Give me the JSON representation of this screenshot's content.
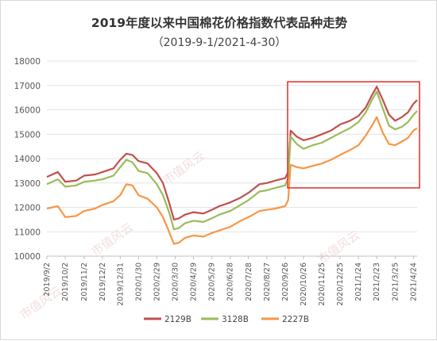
{
  "chart_data": {
    "type": "line",
    "title": "2019年度以来中国棉花价格指数代表品种走势",
    "subtitle": "（2019-9-1/2021-4-30）",
    "ylim": [
      10000,
      18000
    ],
    "yticks": [
      10000,
      11000,
      12000,
      13000,
      14000,
      15000,
      16000,
      17000,
      18000
    ],
    "x_tick_labels": [
      "2019/9/2",
      "2019/10/2",
      "2019/11/2",
      "2019/12/2",
      "2019/12/31",
      "2020/1/30",
      "2020/2/29",
      "2020/3/30",
      "2020/4/29",
      "2020/5/29",
      "2020/6/28",
      "2020/7/28",
      "2020/8/27",
      "2020/9/26",
      "2020/10/26",
      "2020/11/25",
      "2020/12/25",
      "2021/1/24",
      "2021/2/23",
      "2021/3/25",
      "2021/4/24"
    ],
    "x_range": [
      "2019/9/2",
      "2021/4/30"
    ],
    "grid": "horizontal",
    "legend_position": "bottom",
    "series": [
      {
        "name": "2129B",
        "color": "#c0504d",
        "points": [
          [
            "2019/9/2",
            13250
          ],
          [
            "2019/9/20",
            13450
          ],
          [
            "2019/10/2",
            13050
          ],
          [
            "2019/10/20",
            13100
          ],
          [
            "2019/11/2",
            13300
          ],
          [
            "2019/11/20",
            13350
          ],
          [
            "2019/12/2",
            13450
          ],
          [
            "2019/12/20",
            13600
          ],
          [
            "2019/12/31",
            13950
          ],
          [
            "2020/1/10",
            14200
          ],
          [
            "2020/1/20",
            14150
          ],
          [
            "2020/1/30",
            13900
          ],
          [
            "2020/2/14",
            13800
          ],
          [
            "2020/2/29",
            13400
          ],
          [
            "2020/3/10",
            13000
          ],
          [
            "2020/3/20",
            12200
          ],
          [
            "2020/3/28",
            11500
          ],
          [
            "2020/4/5",
            11550
          ],
          [
            "2020/4/15",
            11700
          ],
          [
            "2020/4/29",
            11800
          ],
          [
            "2020/5/15",
            11750
          ],
          [
            "2020/5/29",
            11900
          ],
          [
            "2020/6/10",
            12050
          ],
          [
            "2020/6/28",
            12200
          ],
          [
            "2020/7/15",
            12400
          ],
          [
            "2020/7/28",
            12600
          ],
          [
            "2020/8/15",
            12950
          ],
          [
            "2020/8/27",
            13000
          ],
          [
            "2020/9/10",
            13100
          ],
          [
            "2020/9/26",
            13200
          ],
          [
            "2020/10/1",
            13450
          ],
          [
            "2020/10/5",
            15150
          ],
          [
            "2020/10/15",
            14900
          ],
          [
            "2020/10/26",
            14750
          ],
          [
            "2020/11/10",
            14850
          ],
          [
            "2020/11/25",
            15000
          ],
          [
            "2020/12/10",
            15150
          ],
          [
            "2020/12/25",
            15400
          ],
          [
            "2021/1/10",
            15550
          ],
          [
            "2021/1/24",
            15750
          ],
          [
            "2021/2/5",
            16100
          ],
          [
            "2021/2/15",
            16600
          ],
          [
            "2021/2/23",
            16950
          ],
          [
            "2021/3/5",
            16400
          ],
          [
            "2021/3/15",
            15800
          ],
          [
            "2021/3/25",
            15550
          ],
          [
            "2021/4/5",
            15700
          ],
          [
            "2021/4/15",
            15900
          ],
          [
            "2021/4/24",
            16250
          ],
          [
            "2021/4/30",
            16400
          ]
        ]
      },
      {
        "name": "3128B",
        "color": "#9bbb59",
        "points": [
          [
            "2019/9/2",
            12950
          ],
          [
            "2019/9/20",
            13150
          ],
          [
            "2019/10/2",
            12850
          ],
          [
            "2019/10/20",
            12900
          ],
          [
            "2019/11/2",
            13050
          ],
          [
            "2019/11/20",
            13100
          ],
          [
            "2019/12/2",
            13150
          ],
          [
            "2019/12/20",
            13300
          ],
          [
            "2019/12/31",
            13650
          ],
          [
            "2020/1/10",
            13950
          ],
          [
            "2020/1/20",
            13850
          ],
          [
            "2020/1/30",
            13500
          ],
          [
            "2020/2/14",
            13400
          ],
          [
            "2020/2/29",
            12950
          ],
          [
            "2020/3/10",
            12500
          ],
          [
            "2020/3/20",
            11800
          ],
          [
            "2020/3/28",
            11100
          ],
          [
            "2020/4/5",
            11150
          ],
          [
            "2020/4/15",
            11350
          ],
          [
            "2020/4/29",
            11450
          ],
          [
            "2020/5/15",
            11400
          ],
          [
            "2020/5/29",
            11550
          ],
          [
            "2020/6/10",
            11700
          ],
          [
            "2020/6/28",
            11850
          ],
          [
            "2020/7/15",
            12100
          ],
          [
            "2020/7/28",
            12300
          ],
          [
            "2020/8/15",
            12650
          ],
          [
            "2020/8/27",
            12700
          ],
          [
            "2020/9/10",
            12800
          ],
          [
            "2020/9/26",
            12900
          ],
          [
            "2020/10/1",
            13200
          ],
          [
            "2020/10/5",
            14900
          ],
          [
            "2020/10/15",
            14600
          ],
          [
            "2020/10/26",
            14400
          ],
          [
            "2020/11/10",
            14550
          ],
          [
            "2020/11/25",
            14650
          ],
          [
            "2020/12/10",
            14850
          ],
          [
            "2020/12/25",
            15050
          ],
          [
            "2021/1/10",
            15250
          ],
          [
            "2021/1/24",
            15500
          ],
          [
            "2021/2/5",
            15900
          ],
          [
            "2021/2/15",
            16400
          ],
          [
            "2021/2/23",
            16750
          ],
          [
            "2021/3/5",
            16050
          ],
          [
            "2021/3/15",
            15350
          ],
          [
            "2021/3/25",
            15200
          ],
          [
            "2021/4/5",
            15300
          ],
          [
            "2021/4/15",
            15500
          ],
          [
            "2021/4/24",
            15800
          ],
          [
            "2021/4/30",
            15950
          ]
        ]
      },
      {
        "name": "2227B",
        "color": "#f79646",
        "points": [
          [
            "2019/9/2",
            11950
          ],
          [
            "2019/9/20",
            12050
          ],
          [
            "2019/10/2",
            11600
          ],
          [
            "2019/10/20",
            11650
          ],
          [
            "2019/11/2",
            11850
          ],
          [
            "2019/11/20",
            11950
          ],
          [
            "2019/12/2",
            12100
          ],
          [
            "2019/12/20",
            12250
          ],
          [
            "2019/12/31",
            12500
          ],
          [
            "2020/1/10",
            12950
          ],
          [
            "2020/1/20",
            12900
          ],
          [
            "2020/1/30",
            12500
          ],
          [
            "2020/2/14",
            12350
          ],
          [
            "2020/2/29",
            12000
          ],
          [
            "2020/3/10",
            11600
          ],
          [
            "2020/3/20",
            11000
          ],
          [
            "2020/3/28",
            10500
          ],
          [
            "2020/4/5",
            10550
          ],
          [
            "2020/4/15",
            10750
          ],
          [
            "2020/4/29",
            10850
          ],
          [
            "2020/5/15",
            10800
          ],
          [
            "2020/5/29",
            10950
          ],
          [
            "2020/6/10",
            11050
          ],
          [
            "2020/6/28",
            11200
          ],
          [
            "2020/7/15",
            11450
          ],
          [
            "2020/7/28",
            11600
          ],
          [
            "2020/8/15",
            11850
          ],
          [
            "2020/8/27",
            11900
          ],
          [
            "2020/9/10",
            11950
          ],
          [
            "2020/9/26",
            12050
          ],
          [
            "2020/10/1",
            12300
          ],
          [
            "2020/10/5",
            13750
          ],
          [
            "2020/10/15",
            13650
          ],
          [
            "2020/10/26",
            13600
          ],
          [
            "2020/11/10",
            13700
          ],
          [
            "2020/11/25",
            13800
          ],
          [
            "2020/12/10",
            13950
          ],
          [
            "2020/12/25",
            14150
          ],
          [
            "2021/1/10",
            14350
          ],
          [
            "2021/1/24",
            14550
          ],
          [
            "2021/2/5",
            14950
          ],
          [
            "2021/2/15",
            15350
          ],
          [
            "2021/2/23",
            15700
          ],
          [
            "2021/3/5",
            15050
          ],
          [
            "2021/3/15",
            14600
          ],
          [
            "2021/3/25",
            14550
          ],
          [
            "2021/4/5",
            14700
          ],
          [
            "2021/4/15",
            14850
          ],
          [
            "2021/4/24",
            15150
          ],
          [
            "2021/4/30",
            15250
          ]
        ]
      }
    ],
    "highlight_box": {
      "from": "2020/9/30",
      "to": "2021/4/30",
      "y_from": 12800,
      "y_to": 17150,
      "color": "#e53935"
    }
  },
  "watermark_text": "市值风云"
}
